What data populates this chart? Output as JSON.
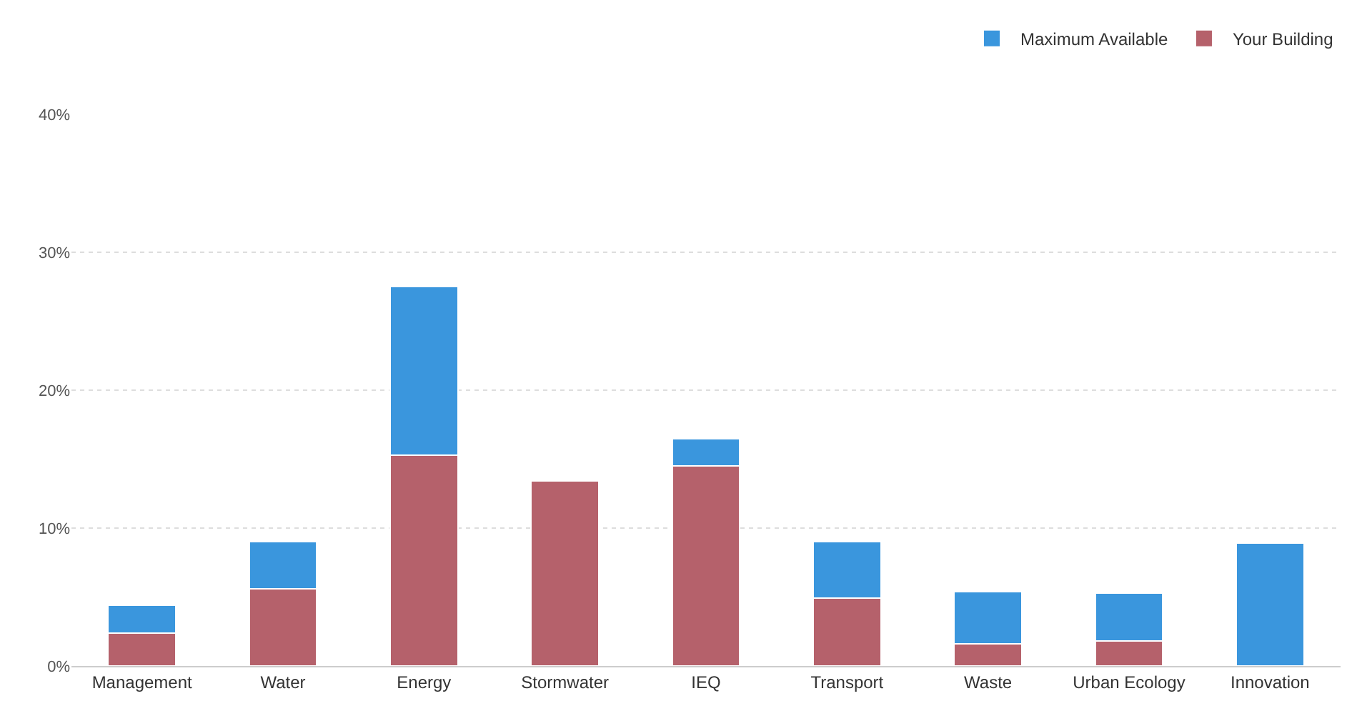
{
  "chart_data": {
    "type": "bar",
    "stacked": true,
    "categories": [
      "Management",
      "Water",
      "Energy",
      "Stormwater",
      "IEQ",
      "Transport",
      "Waste",
      "Urban Ecology",
      "Innovation"
    ],
    "series": [
      {
        "name": "Your Building",
        "color": "#b5616b",
        "values": [
          2.4,
          5.6,
          15.3,
          13.4,
          14.5,
          4.9,
          1.6,
          1.8,
          0
        ]
      },
      {
        "name": "Maximum Available",
        "color": "#3a96dd",
        "values": [
          2.0,
          3.4,
          12.2,
          0,
          2.0,
          4.1,
          3.8,
          3.5,
          8.9
        ]
      }
    ],
    "ylim": [
      0,
      40
    ],
    "yticks": [
      {
        "value": 0,
        "label": "0%"
      },
      {
        "value": 10,
        "label": "10%"
      },
      {
        "value": 20,
        "label": "20%"
      },
      {
        "value": 30,
        "label": "30%"
      },
      {
        "value": 40,
        "label": "40%"
      }
    ],
    "grid": "y",
    "legend": "top right"
  }
}
